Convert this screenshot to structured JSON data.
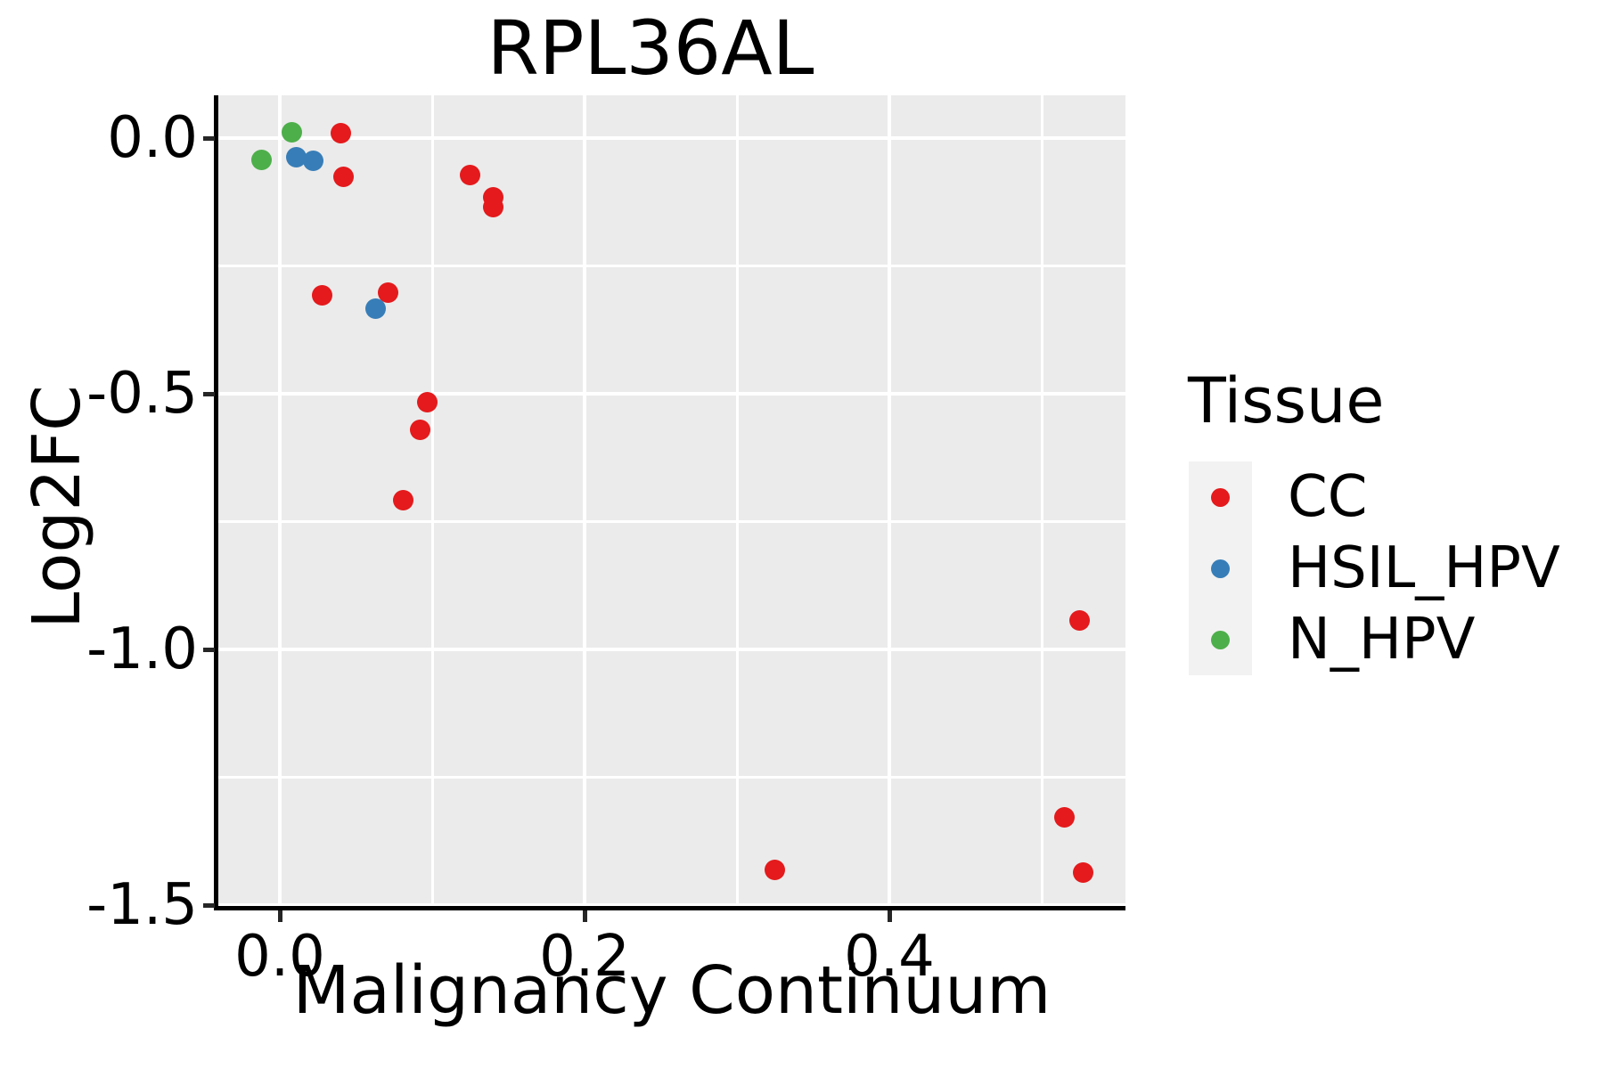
{
  "title": "RPL36AL",
  "axes": {
    "x": {
      "label": "Malignancy Continuum",
      "tick_labels": [
        "0.0",
        "0.2",
        "0.4"
      ],
      "tick_values": [
        0,
        0.2,
        0.4
      ],
      "minor_values": [
        0.1,
        0.3,
        0.5
      ]
    },
    "y": {
      "label": "Log2FC",
      "tick_labels": [
        "0.0",
        "-0.5",
        "-1.0",
        "-1.5"
      ],
      "tick_values": [
        0,
        -0.5,
        -1.0,
        -1.5
      ],
      "minor_values": [
        -0.25,
        -0.75,
        -1.25
      ]
    }
  },
  "legend": {
    "title": "Tissue",
    "items": [
      {
        "label": "CC",
        "color": "#E41A1C"
      },
      {
        "label": "HSIL_HPV",
        "color": "#377EB8"
      },
      {
        "label": "N_HPV",
        "color": "#4DAF4A"
      }
    ]
  },
  "colors": {
    "panel_background": "#EBEBEB",
    "gridline": "#FFFFFF",
    "legend_key_background": "#F2F2F2",
    "axis_line": "#000000",
    "tick_mark": "#262626",
    "text": "#000000",
    "cc_red": "#E41A1C",
    "hsil_hpv_blue": "#377EB8",
    "n_hpv_green": "#4DAF4A"
  },
  "chart_data": {
    "type": "scatter",
    "title": "RPL36AL",
    "xlabel": "Malignancy Continuum",
    "ylabel": "Log2FC",
    "xlim": [
      -0.04,
      0.555
    ],
    "ylim": [
      -1.507,
      0.084
    ],
    "grid": true,
    "legend_title": "Tissue",
    "legend_position": "right",
    "series": [
      {
        "name": "CC",
        "color": "#E41A1C",
        "points": [
          [
            0.04,
            0.01
          ],
          [
            0.042,
            -0.075
          ],
          [
            0.125,
            -0.073
          ],
          [
            0.14,
            -0.115
          ],
          [
            0.14,
            -0.135
          ],
          [
            0.028,
            -0.308
          ],
          [
            0.071,
            -0.303
          ],
          [
            0.097,
            -0.516
          ],
          [
            0.092,
            -0.57
          ],
          [
            0.081,
            -0.709
          ],
          [
            0.325,
            -1.432
          ],
          [
            0.525,
            -0.944
          ],
          [
            0.515,
            -1.328
          ],
          [
            0.527,
            -1.436
          ]
        ]
      },
      {
        "name": "HSIL_HPV",
        "color": "#377EB8",
        "points": [
          [
            0.011,
            -0.038
          ],
          [
            0.022,
            -0.044
          ],
          [
            0.063,
            -0.334
          ]
        ]
      },
      {
        "name": "N_HPV",
        "color": "#4DAF4A",
        "points": [
          [
            -0.012,
            -0.042
          ],
          [
            0.008,
            0.012
          ]
        ]
      }
    ]
  }
}
